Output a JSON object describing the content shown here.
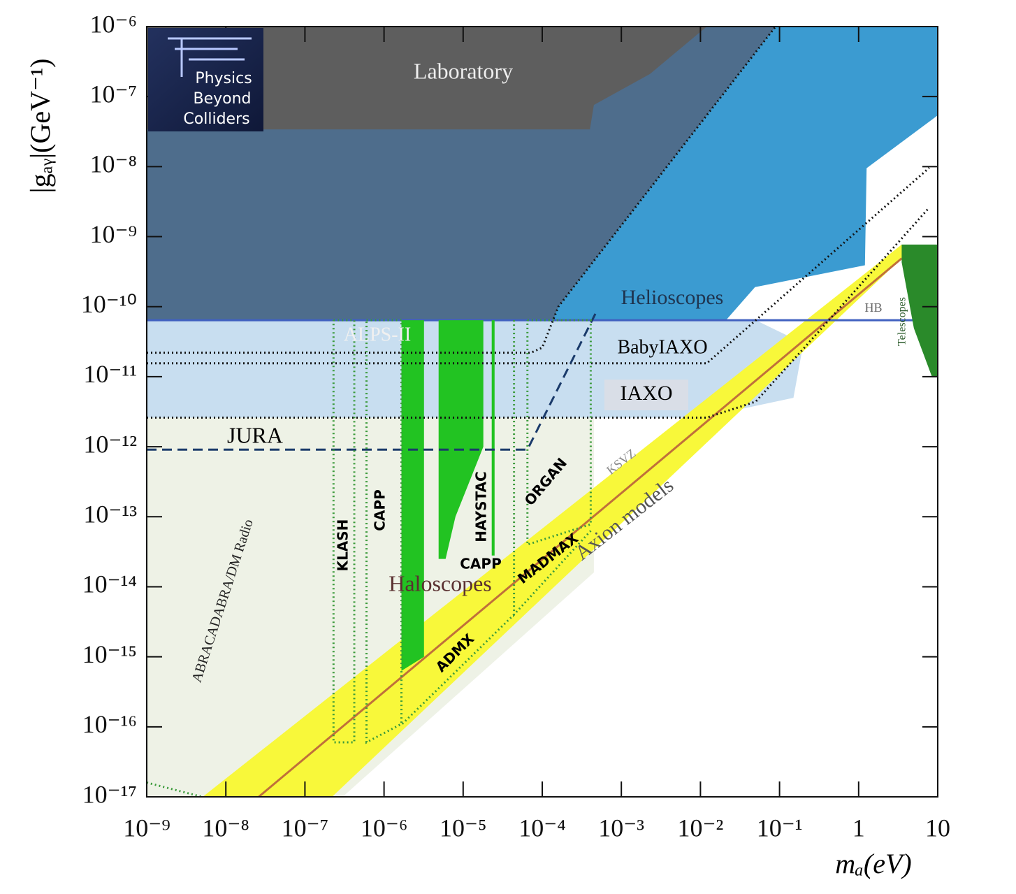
{
  "chart_data": {
    "type": "area",
    "xlabel": "mₐ(eV)",
    "ylabel": "|gₐᵧ|(GeV⁻¹)",
    "log_x": true,
    "log_y": true,
    "xlim": [
      1e-09,
      10
    ],
    "ylim": [
      1e-17,
      1e-06
    ],
    "xticks": [
      {
        "value": 1e-09,
        "label": "10⁻⁹"
      },
      {
        "value": 1e-08,
        "label": "10⁻⁸"
      },
      {
        "value": 1e-07,
        "label": "10⁻⁷"
      },
      {
        "value": 1e-06,
        "label": "10⁻⁶"
      },
      {
        "value": 1e-05,
        "label": "10⁻⁵"
      },
      {
        "value": 0.0001,
        "label": "10⁻⁴"
      },
      {
        "value": 0.001,
        "label": "10⁻³"
      },
      {
        "value": 0.01,
        "label": "10⁻²"
      },
      {
        "value": 0.1,
        "label": "10⁻¹"
      },
      1,
      10
    ],
    "yticks": [
      {
        "value": 1e-17,
        "label": "10⁻¹⁷"
      },
      {
        "value": 1e-16,
        "label": "10⁻¹⁶"
      },
      {
        "value": 1e-15,
        "label": "10⁻¹⁵"
      },
      {
        "value": 1e-14,
        "label": "10⁻¹⁴"
      },
      {
        "value": 1e-13,
        "label": "10⁻¹³"
      },
      {
        "value": 1e-12,
        "label": "10⁻¹²"
      },
      {
        "value": 1e-11,
        "label": "10⁻¹¹"
      },
      {
        "value": 1e-10,
        "label": "10⁻¹⁰"
      },
      {
        "value": 1e-09,
        "label": "10⁻⁹"
      },
      {
        "value": 1e-08,
        "label": "10⁻⁸"
      },
      {
        "value": 1e-07,
        "label": "10⁻⁷"
      },
      {
        "value": 1e-06,
        "label": "10⁻⁶"
      }
    ],
    "series": [
      {
        "name": "Helioscopes",
        "style": "fill",
        "color": "#3b9bd1",
        "x": [
          1e-09,
          10,
          10,
          1.26,
          1.2,
          0.049,
          0.021,
          1e-09
        ],
        "y": [
          1e-06,
          1e-06,
          5.4e-08,
          9.5e-09,
          3.9e-10,
          1.9e-10,
          6.4e-11,
          6.4e-11
        ]
      },
      {
        "style": "fill",
        "color": "#4e6d8c",
        "x": [
          1e-09,
          0.089,
          0.00016,
          0.0001,
          7.2e-05,
          1e-09
        ],
        "y": [
          1e-06,
          1e-06,
          1e-10,
          2.6e-11,
          2.2e-11,
          2.2e-11
        ]
      },
      {
        "name": "Laboratory",
        "style": "fill",
        "color": "#5e5e5e",
        "x": [
          1e-09,
          0.012,
          0.0023,
          0.00045,
          0.0004,
          1e-09
        ],
        "y": [
          1e-06,
          1e-06,
          2.1e-07,
          7.6e-08,
          3.4e-08,
          3.4e-08
        ]
      },
      {
        "style": "fill",
        "color": "#c8def0",
        "x": [
          1e-09,
          0.021,
          0.05,
          0.2,
          0.15,
          0.01,
          1e-09
        ],
        "y": [
          6.4e-11,
          6.4e-11,
          6.4e-11,
          3e-11,
          5e-12,
          2.6e-12,
          2.6e-12
        ]
      },
      {
        "name": "Haloscopes",
        "style": "fill",
        "color": "#eef2e6",
        "x": [
          1e-09,
          0.00045,
          0.00045,
          3e-07,
          1e-09
        ],
        "y": [
          2.6e-12,
          2.6e-12,
          1.6e-14,
          1e-17,
          1e-17
        ]
      },
      {
        "name": "Axion models",
        "style": "fill",
        "color": "#f8f83a",
        "x": [
          5.1e-09,
          3.5,
          4.3,
          2.2e-07
        ],
        "y": [
          1e-17,
          7.7e-10,
          6.1e-10,
          1e-17
        ]
      },
      {
        "name": "KSVZ",
        "style": "line",
        "color": "#c0703a",
        "x": [
          2.6e-08,
          3.5
        ],
        "y": [
          1e-17,
          4.9e-10
        ]
      },
      {
        "name": "HB",
        "style": "line",
        "color": "#4060c0",
        "x": [
          1e-09,
          10
        ],
        "y": [
          6.4e-11,
          6.4e-11
        ]
      },
      {
        "name": "Telescopes",
        "style": "fill",
        "color": "#2a8a2a",
        "x": [
          3.5,
          10,
          10,
          8.5,
          5,
          3.5
        ],
        "y": [
          7.7e-10,
          7.7e-10,
          9.8e-12,
          9.8e-12,
          4.9e-11,
          4.3e-10
        ]
      },
      {
        "style": "fill",
        "color": "#22c322",
        "x": [
          1.66e-06,
          3.2e-06,
          3.2e-06,
          1.66e-06
        ],
        "y": [
          6.4e-11,
          6.4e-11,
          1e-15,
          6.3e-16
        ]
      },
      {
        "name": "CAPP",
        "style": "fill",
        "color": "#22c322",
        "x": [
          4.9e-06,
          1.8e-05,
          1.8e-05,
          8e-06,
          6e-06,
          4.9e-06
        ],
        "y": [
          6.4e-11,
          6.4e-11,
          1e-12,
          1e-13,
          2.5e-14,
          2.5e-14
        ]
      },
      {
        "name": "HAYSTAC",
        "style": "fill",
        "color": "#22c322",
        "x": [
          2.3e-05,
          2.5e-05,
          2.5e-05,
          2.3e-05
        ],
        "y": [
          6.4e-11,
          6.4e-11,
          2.8e-14,
          2.8e-14
        ]
      },
      {
        "name": "ALPS-II",
        "style": "dotted",
        "color": "#111111",
        "x": [
          1e-09,
          7.2e-05,
          0.0001,
          0.00016,
          0.089
        ],
        "y": [
          2.2e-11,
          2.2e-11,
          2.6e-11,
          1e-10,
          1e-06
        ]
      },
      {
        "name": "BabyIAXO",
        "style": "dotted",
        "color": "#111111",
        "x": [
          1e-09,
          0.012,
          7.8
        ],
        "y": [
          1.55e-11,
          1.55e-11,
          9.6e-09
        ]
      },
      {
        "name": "IAXO",
        "style": "dotted",
        "color": "#111111",
        "x": [
          1e-09,
          0.012,
          0.05,
          0.2,
          7.8
        ],
        "y": [
          2.6e-12,
          2.6e-12,
          4.4e-12,
          2.5e-11,
          2.6e-09
        ]
      },
      {
        "name": "JURA",
        "style": "dashed",
        "color": "#1a3a6a",
        "x": [
          1e-09,
          6.5e-05,
          0.00048
        ],
        "y": [
          9.1e-13,
          9.1e-13,
          8.3e-11
        ]
      },
      {
        "name": "KLASH",
        "style": "dotted",
        "color": "#3a9a3a",
        "x": [
          2.3e-07,
          4.2e-07,
          4.2e-07,
          2.3e-07,
          2.3e-07
        ],
        "y": [
          6.4e-11,
          6.4e-11,
          6e-17,
          6e-17,
          6.4e-11
        ]
      },
      {
        "name": "CAPP",
        "style": "dotted",
        "color": "#3a9a3a",
        "x": [
          6e-07,
          1.66e-06,
          1.66e-06,
          6e-07,
          6e-07
        ],
        "y": [
          6.4e-11,
          6.4e-11,
          1.1e-16,
          6e-17,
          6.4e-11
        ]
      },
      {
        "name": "ORGAN",
        "style": "dotted",
        "color": "#3a9a3a",
        "x": [
          6.5e-05,
          0.00041,
          0.00041,
          6.5e-05,
          6.5e-05
        ],
        "y": [
          6.4e-11,
          6.4e-11,
          7.8e-14,
          4e-14,
          6.4e-11
        ]
      },
      {
        "name": "MADMAX",
        "style": "dotted",
        "color": "#3a9a3a",
        "x": [
          4.4e-05,
          4.4e-05,
          0.00041
        ],
        "y": [
          6.4e-11,
          4e-15,
          6.3e-14
        ]
      },
      {
        "name": "ADMX",
        "style": "dotted",
        "color": "#3a9a3a",
        "x": [
          1.7e-06,
          4.4e-05
        ],
        "y": [
          1.1e-16,
          4e-15
        ]
      },
      {
        "name": "ABRACADABRA/DM Radio",
        "style": "dotted",
        "color": "#3a9a3a",
        "x": [
          1e-09,
          5e-09
        ],
        "y": [
          1.6e-17,
          1e-17
        ]
      }
    ]
  },
  "logo": {
    "lines": [
      "Physics",
      "Beyond",
      "Colliders"
    ]
  }
}
